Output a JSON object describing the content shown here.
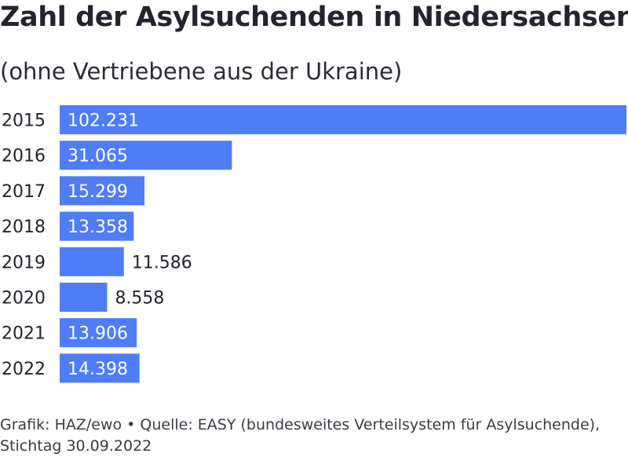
{
  "chart_data": {
    "type": "bar",
    "orientation": "horizontal",
    "title": "Zahl der Asylsuchenden in Niedersachsen",
    "subtitle": "(ohne Vertriebene aus der Ukraine)",
    "categories": [
      "2015",
      "2016",
      "2017",
      "2018",
      "2019",
      "2020",
      "2021",
      "2022"
    ],
    "values": [
      102231,
      31065,
      15299,
      13358,
      11586,
      8558,
      13906,
      14398
    ],
    "value_labels": [
      "102.231",
      "31.065",
      "15.299",
      "13.358",
      "11.586",
      "8.558",
      "13.906",
      "14.398"
    ],
    "xlim": [
      0,
      102231
    ],
    "grid": false,
    "legend": "none",
    "bar_color": "#4f7cf7"
  },
  "footer": {
    "line1": "Grafik: HAZ/ewo • Quelle: EASY (bundesweites Verteilsystem für Asylsuchende),",
    "line2": "Stichtag 30.09.2022"
  }
}
